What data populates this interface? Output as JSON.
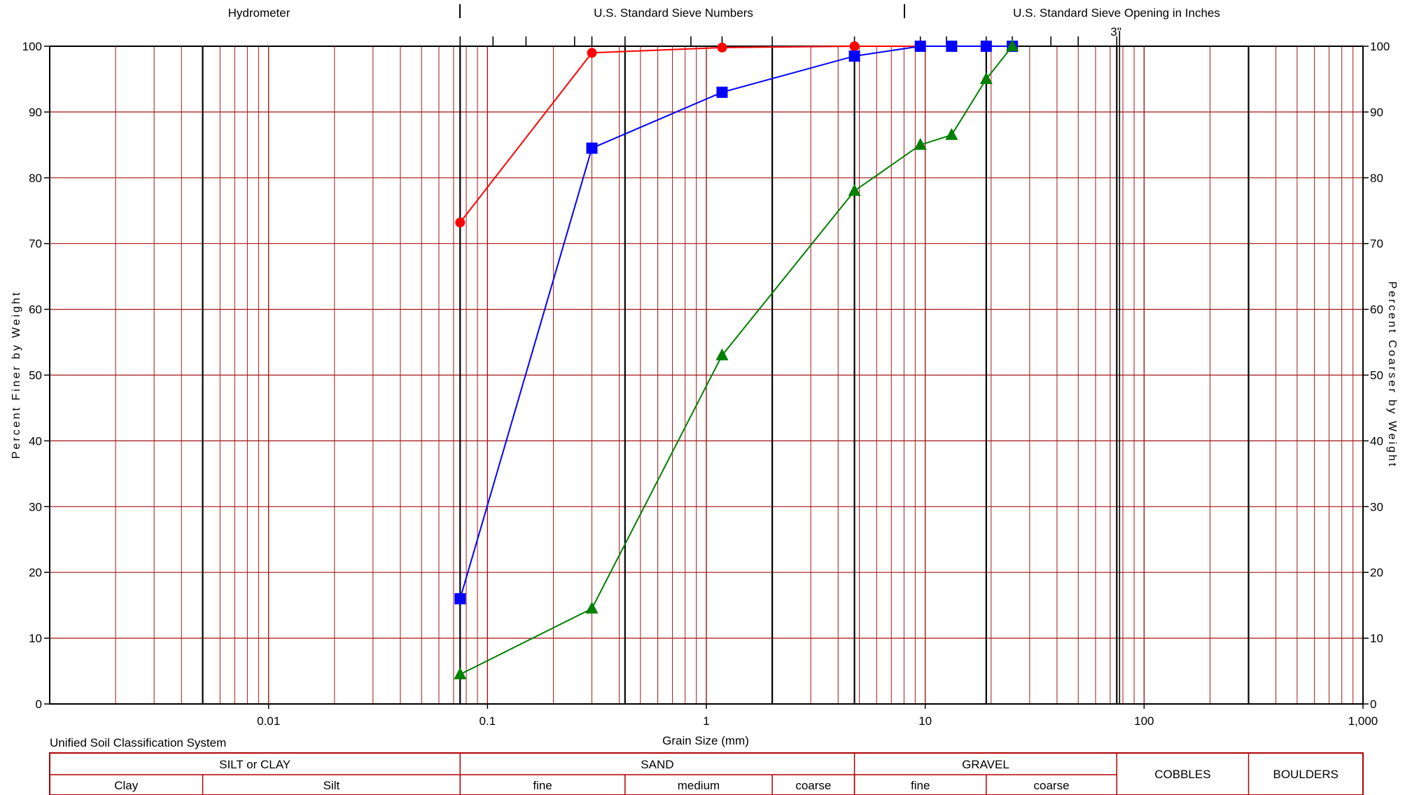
{
  "chart_data": {
    "type": "line",
    "x_scale": "log",
    "xlim": [
      0.001,
      1000
    ],
    "ylim": [
      0,
      100
    ],
    "xlabel": "Grain Size (mm)",
    "ylabel_left": "Percent Finer by Weight",
    "ylabel_right": "Percent Coarser by Weight",
    "x_tick_labels": [
      {
        "value": 0.01,
        "label": "0.01"
      },
      {
        "value": 0.1,
        "label": "0.1"
      },
      {
        "value": 1,
        "label": "1"
      },
      {
        "value": 10,
        "label": "10"
      },
      {
        "value": 100,
        "label": "100"
      },
      {
        "value": 1000,
        "label": "1,000"
      }
    ],
    "y_ticks_left": [
      "0",
      "10",
      "20",
      "30",
      "40",
      "50",
      "60",
      "70",
      "80",
      "90",
      "100"
    ],
    "y_ticks_right": [
      "100",
      "90",
      "80",
      "70",
      "60",
      "50",
      "40",
      "30",
      "20",
      "10",
      "0"
    ],
    "top_headers": [
      "Hydrometer",
      "U.S. Standard Sieve Numbers",
      "U.S. Standard Sieve Opening in Inches"
    ],
    "top_annotation": "3\"",
    "grid": true,
    "series": [
      {
        "color": "#ff0000",
        "marker": "circle",
        "x": [
          0.075,
          0.3,
          1.18,
          4.75,
          9.5,
          13.2,
          19,
          25
        ],
        "y": [
          73.2,
          99,
          99.8,
          100,
          100,
          100,
          100,
          100
        ]
      },
      {
        "color": "#0000ff",
        "marker": "square",
        "x": [
          0.075,
          0.3,
          1.18,
          4.75,
          9.5,
          13.2,
          19,
          25
        ],
        "y": [
          16,
          84.5,
          93,
          98.5,
          100,
          100,
          100,
          100
        ]
      },
      {
        "color": "#008000",
        "marker": "triangle",
        "x": [
          0.075,
          0.3,
          1.18,
          4.75,
          9.5,
          13.2,
          19,
          25
        ],
        "y": [
          4.5,
          14.5,
          53,
          78,
          85,
          86.5,
          95,
          100
        ]
      }
    ]
  },
  "classification": {
    "title": "Unified Soil Classification System",
    "groups": [
      {
        "label": "SILT or CLAY",
        "from": 0.001,
        "to": 0.075
      },
      {
        "label": "SAND",
        "from": 0.075,
        "to": 4.75
      },
      {
        "label": "GRAVEL",
        "from": 4.75,
        "to": 75
      }
    ],
    "single": [
      {
        "label": "COBBLES",
        "from": 75,
        "to": 300
      },
      {
        "label": "BOULDERS",
        "from": 300,
        "to": 1000
      }
    ],
    "subs": [
      {
        "label": "Clay",
        "from": 0.001,
        "to": 0.005
      },
      {
        "label": "Silt",
        "from": 0.005,
        "to": 0.075
      },
      {
        "label": "fine",
        "from": 0.075,
        "to": 0.425
      },
      {
        "label": "medium",
        "from": 0.425,
        "to": 2
      },
      {
        "label": "coarse",
        "from": 2,
        "to": 4.75
      },
      {
        "label": "fine",
        "from": 4.75,
        "to": 19
      },
      {
        "label": "coarse",
        "from": 19,
        "to": 75
      }
    ]
  }
}
